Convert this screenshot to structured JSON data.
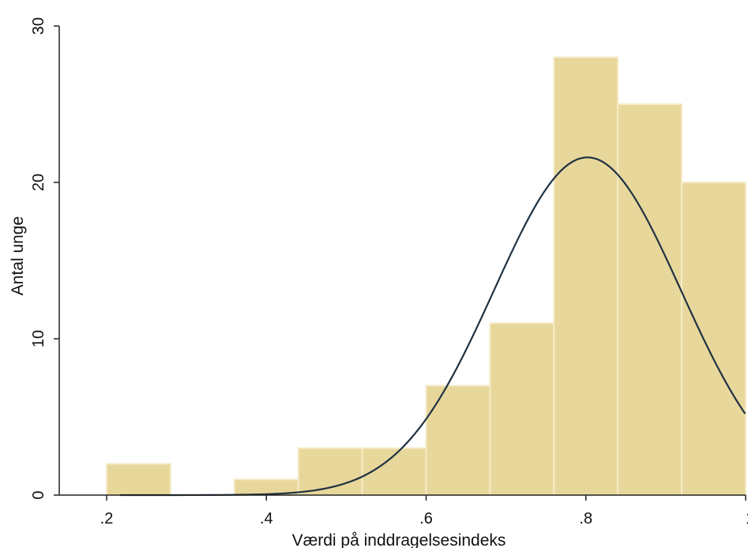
{
  "chart_data": {
    "type": "bar",
    "subtype": "histogram-with-normal-density",
    "title": "",
    "xlabel": "Værdi på inddragelsesindeks",
    "ylabel": "Antal unge",
    "xlim": [
      0.2,
      1.0
    ],
    "ylim": [
      0,
      30
    ],
    "xticks": [
      0.2,
      0.4,
      0.6,
      0.8,
      1.0
    ],
    "xtick_labels": [
      ".2",
      ".4",
      ".6",
      ".8",
      "1"
    ],
    "yticks": [
      0,
      10,
      20,
      30
    ],
    "ytick_labels": [
      "0",
      "10",
      "20",
      "30"
    ],
    "grid": false,
    "bins": [
      {
        "start": 0.2,
        "end": 0.28,
        "count": 2
      },
      {
        "start": 0.28,
        "end": 0.36,
        "count": 0
      },
      {
        "start": 0.36,
        "end": 0.44,
        "count": 1
      },
      {
        "start": 0.44,
        "end": 0.52,
        "count": 3
      },
      {
        "start": 0.52,
        "end": 0.6,
        "count": 3
      },
      {
        "start": 0.6,
        "end": 0.68,
        "count": 7
      },
      {
        "start": 0.68,
        "end": 0.76,
        "count": 11
      },
      {
        "start": 0.76,
        "end": 0.84,
        "count": 28
      },
      {
        "start": 0.84,
        "end": 0.92,
        "count": 25
      },
      {
        "start": 0.92,
        "end": 1.0,
        "count": 20
      }
    ],
    "normal_curve": {
      "mean": 0.802,
      "sd": 0.117,
      "peak": 21.6
    },
    "colors": {
      "bar_fill": "#e8d79a",
      "bar_edge": "#f4ebc8",
      "curve": "#1f3242",
      "axis": "#222222"
    }
  }
}
